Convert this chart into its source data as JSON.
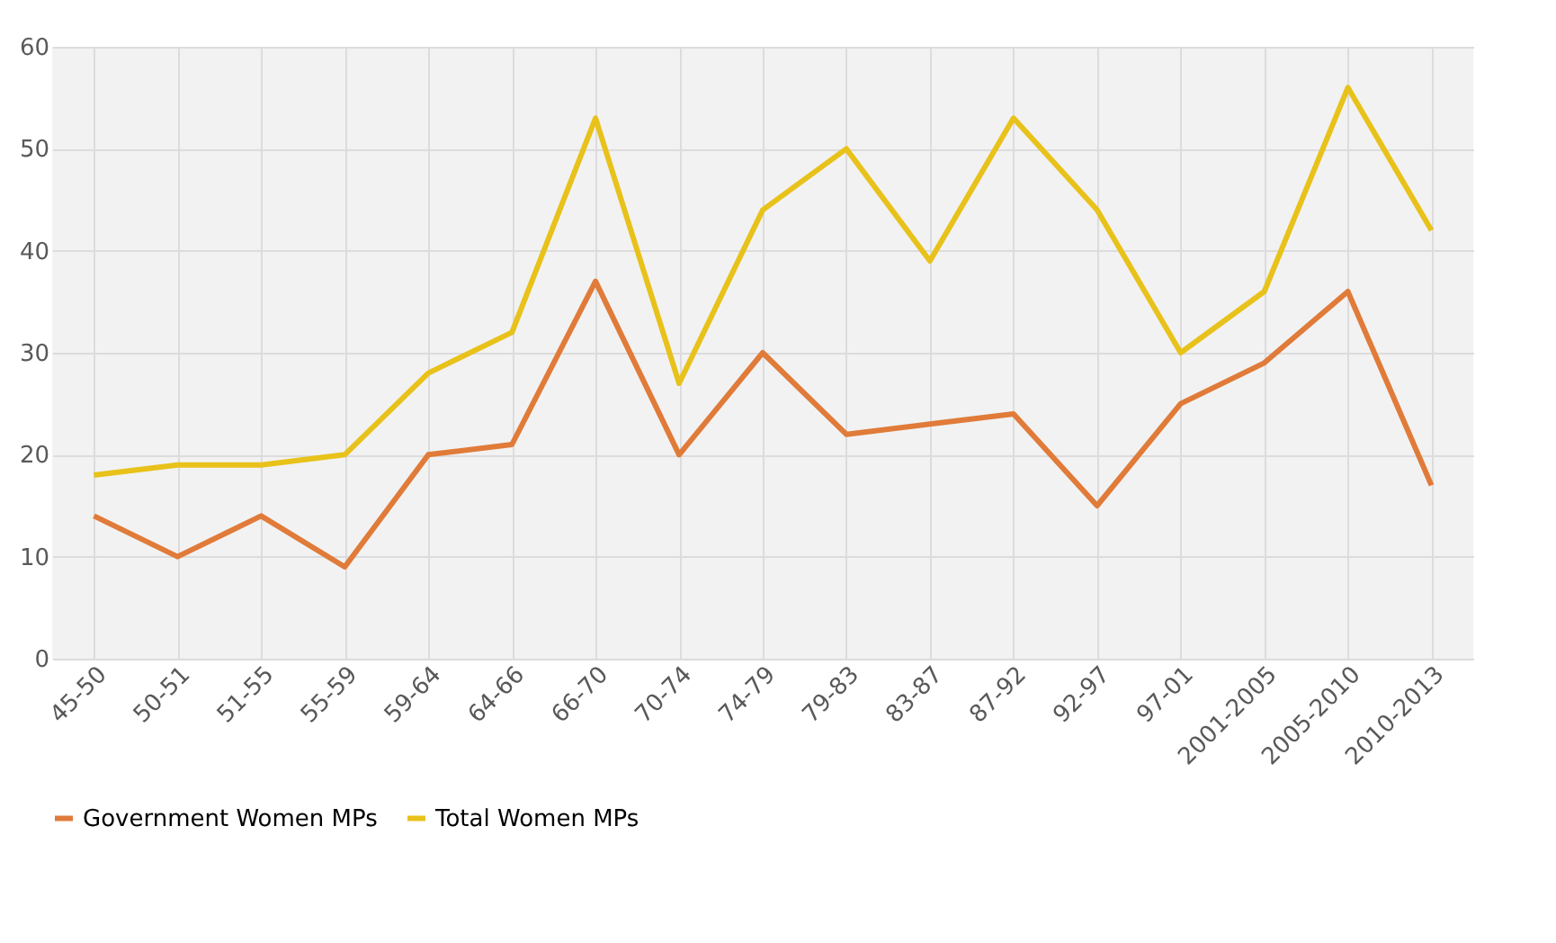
{
  "chart_data": {
    "type": "line",
    "categories": [
      "45-50",
      "50-51",
      "51-55",
      "55-59",
      "59-64",
      "64-66",
      "66-70",
      "70-74",
      "74-79",
      "79-83",
      "83-87",
      "87-92",
      "92-97",
      "97-01",
      "2001-2005",
      "2005-2010",
      "2010-2013"
    ],
    "series": [
      {
        "name": "Government Women MPs",
        "color": "#e07b39",
        "values": [
          14,
          10,
          14,
          9,
          20,
          21,
          37,
          20,
          30,
          22,
          23,
          24,
          15,
          25,
          29,
          36,
          17
        ]
      },
      {
        "name": "Total Women MPs",
        "color": "#e8c21a",
        "values": [
          18,
          19,
          19,
          20,
          28,
          32,
          53,
          27,
          44,
          50,
          39,
          53,
          44,
          30,
          36,
          56,
          42
        ]
      }
    ],
    "ylim": [
      0,
      60
    ],
    "yticks": [
      0,
      10,
      20,
      30,
      40,
      50,
      60
    ],
    "grid": true,
    "legend": "bottom",
    "marker": "none",
    "line_style": "solid"
  }
}
